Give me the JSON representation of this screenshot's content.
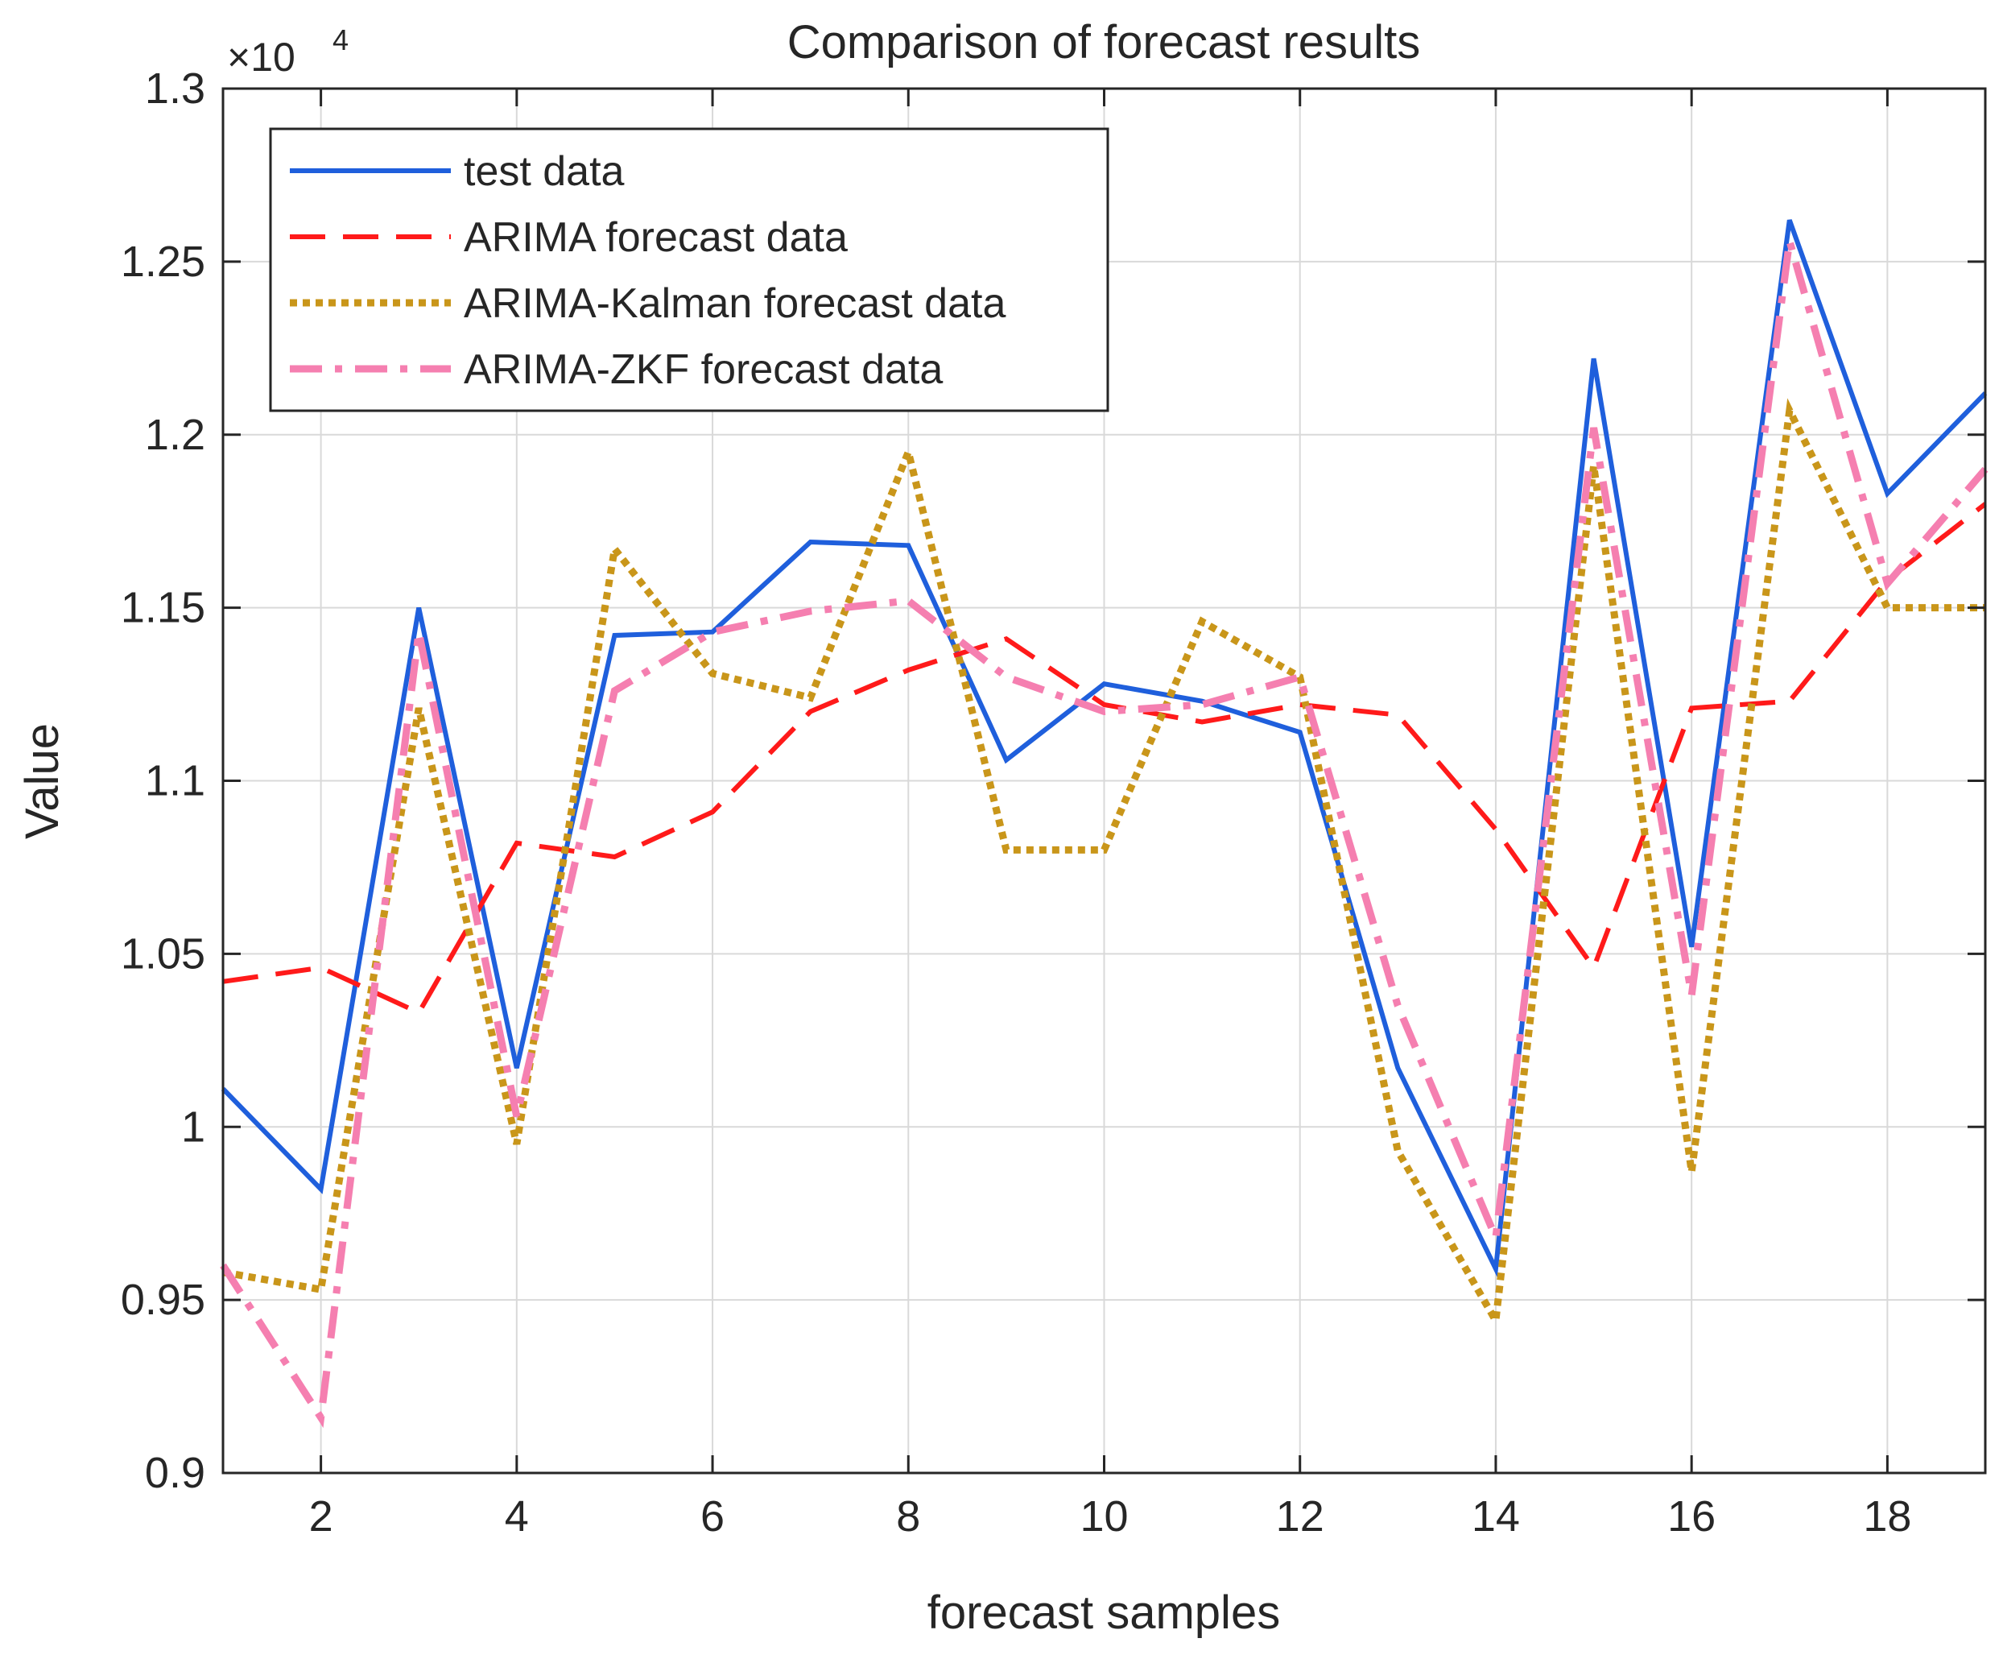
{
  "chart_data": {
    "type": "line",
    "title": "Comparison of forecast results",
    "xlabel": "forecast samples",
    "ylabel": "Value",
    "exponent_label": "×10",
    "exponent_power": "4",
    "xlim": [
      1,
      19
    ],
    "ylim": [
      0.9,
      1.3
    ],
    "xticks": [
      2,
      4,
      6,
      8,
      10,
      12,
      14,
      16,
      18
    ],
    "yticks": [
      0.9,
      0.95,
      1,
      1.05,
      1.1,
      1.15,
      1.2,
      1.25,
      1.3
    ],
    "ytick_labels": [
      "0.9",
      "0.95",
      "1",
      "1.05",
      "1.1",
      "1.15",
      "1.2",
      "1.25",
      "1.3"
    ],
    "grid": true,
    "legend_position": "top-left",
    "x": [
      1,
      2,
      3,
      4,
      5,
      6,
      7,
      8,
      9,
      10,
      11,
      12,
      13,
      14,
      15,
      16,
      17,
      18,
      19
    ],
    "series": [
      {
        "name": "test data",
        "color": "#1f5fdc",
        "style": "solid",
        "values": [
          1.011,
          0.982,
          1.15,
          1.017,
          1.142,
          1.143,
          1.169,
          1.168,
          1.106,
          1.128,
          1.123,
          1.114,
          1.017,
          0.959,
          1.222,
          1.052,
          1.262,
          1.183,
          1.212
        ]
      },
      {
        "name": "ARIMA forecast data",
        "color": "#ff1a1a",
        "style": "dashed",
        "values": [
          1.042,
          1.046,
          1.033,
          1.082,
          1.078,
          1.091,
          1.12,
          1.132,
          1.141,
          1.122,
          1.117,
          1.122,
          1.119,
          1.086,
          1.046,
          1.121,
          1.123,
          1.158,
          1.18
        ]
      },
      {
        "name": "ARIMA-Kalman forecast data",
        "color": "#c9961a",
        "style": "dotted",
        "values": [
          0.958,
          0.953,
          1.121,
          0.995,
          1.167,
          1.131,
          1.124,
          1.195,
          1.08,
          1.08,
          1.146,
          1.13,
          0.993,
          0.944,
          1.191,
          0.987,
          1.207,
          1.15,
          1.15
        ]
      },
      {
        "name": "ARIMA-ZKF forecast data",
        "color": "#f57fb0",
        "style": "dashdot",
        "values": [
          0.96,
          0.916,
          1.143,
          1.003,
          1.126,
          1.143,
          1.149,
          1.152,
          1.13,
          1.12,
          1.122,
          1.13,
          1.035,
          0.968,
          1.202,
          1.038,
          1.256,
          1.157,
          1.19
        ]
      }
    ]
  }
}
